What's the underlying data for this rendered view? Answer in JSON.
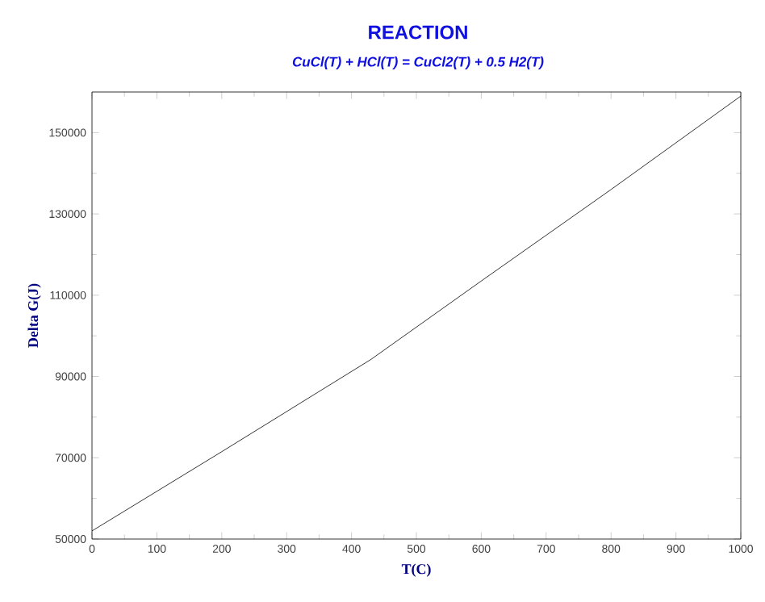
{
  "chart_data": {
    "type": "line",
    "title": "REACTION",
    "subtitle": "CuCl(T) +  HCl(T) =  CuCl2(T) + 0.5  H2(T)",
    "xlabel": "T(C)",
    "ylabel": "Delta G(J)",
    "x": [
      0,
      200,
      430,
      600,
      800,
      1000
    ],
    "series": [
      {
        "color": "#000000",
        "values": [
          52000,
          71500,
          94200,
          113500,
          136000,
          159000
        ]
      }
    ],
    "xlim": [
      0,
      1000
    ],
    "ylim": [
      50000,
      160000
    ],
    "xticks": [
      0,
      100,
      200,
      300,
      400,
      500,
      600,
      700,
      800,
      900,
      1000
    ],
    "yticks": [
      50000,
      70000,
      90000,
      110000,
      130000,
      150000
    ],
    "grid": false,
    "marker": "none",
    "line_style": "solid"
  }
}
